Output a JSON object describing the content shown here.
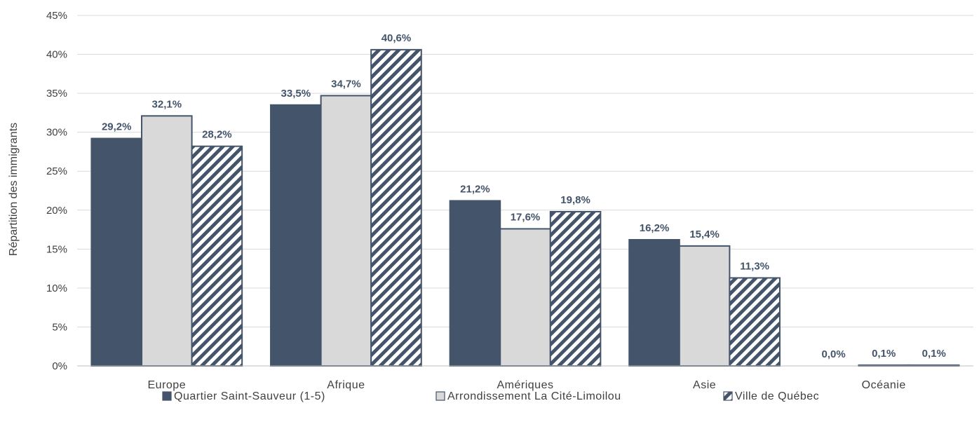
{
  "chart_data": {
    "type": "bar",
    "title": "",
    "xlabel": "",
    "ylabel": "Répartition des immigrants",
    "ylim": [
      0,
      45
    ],
    "yticks": [
      "0%",
      "5%",
      "10%",
      "15%",
      "20%",
      "25%",
      "30%",
      "35%",
      "40%",
      "45%"
    ],
    "grid": true,
    "legend_position": "bottom",
    "categories": [
      "Europe",
      "Afrique",
      "Amériques",
      "Asie",
      "Océanie"
    ],
    "series": [
      {
        "name": "Quartier Saint-Sauveur (1-5)",
        "style": "solid",
        "color": "#44546A",
        "values": [
          29.2,
          33.5,
          21.2,
          16.2,
          0.0
        ],
        "labels": [
          "29,2%",
          "33,5%",
          "21,2%",
          "16,2%",
          "0,0%"
        ]
      },
      {
        "name": "Arrondissement La Cité-Limoilou",
        "style": "solid",
        "color": "#D9D9D9",
        "values": [
          32.1,
          34.7,
          17.6,
          15.4,
          0.1
        ],
        "labels": [
          "32,1%",
          "34,7%",
          "17,6%",
          "15,4%",
          "0,1%"
        ]
      },
      {
        "name": "Ville de Québec",
        "style": "hatched",
        "color": "#44546A",
        "values": [
          28.2,
          40.6,
          19.8,
          11.3,
          0.1
        ],
        "labels": [
          "28,2%",
          "40,6%",
          "19,8%",
          "11,3%",
          "0,1%"
        ]
      }
    ]
  }
}
